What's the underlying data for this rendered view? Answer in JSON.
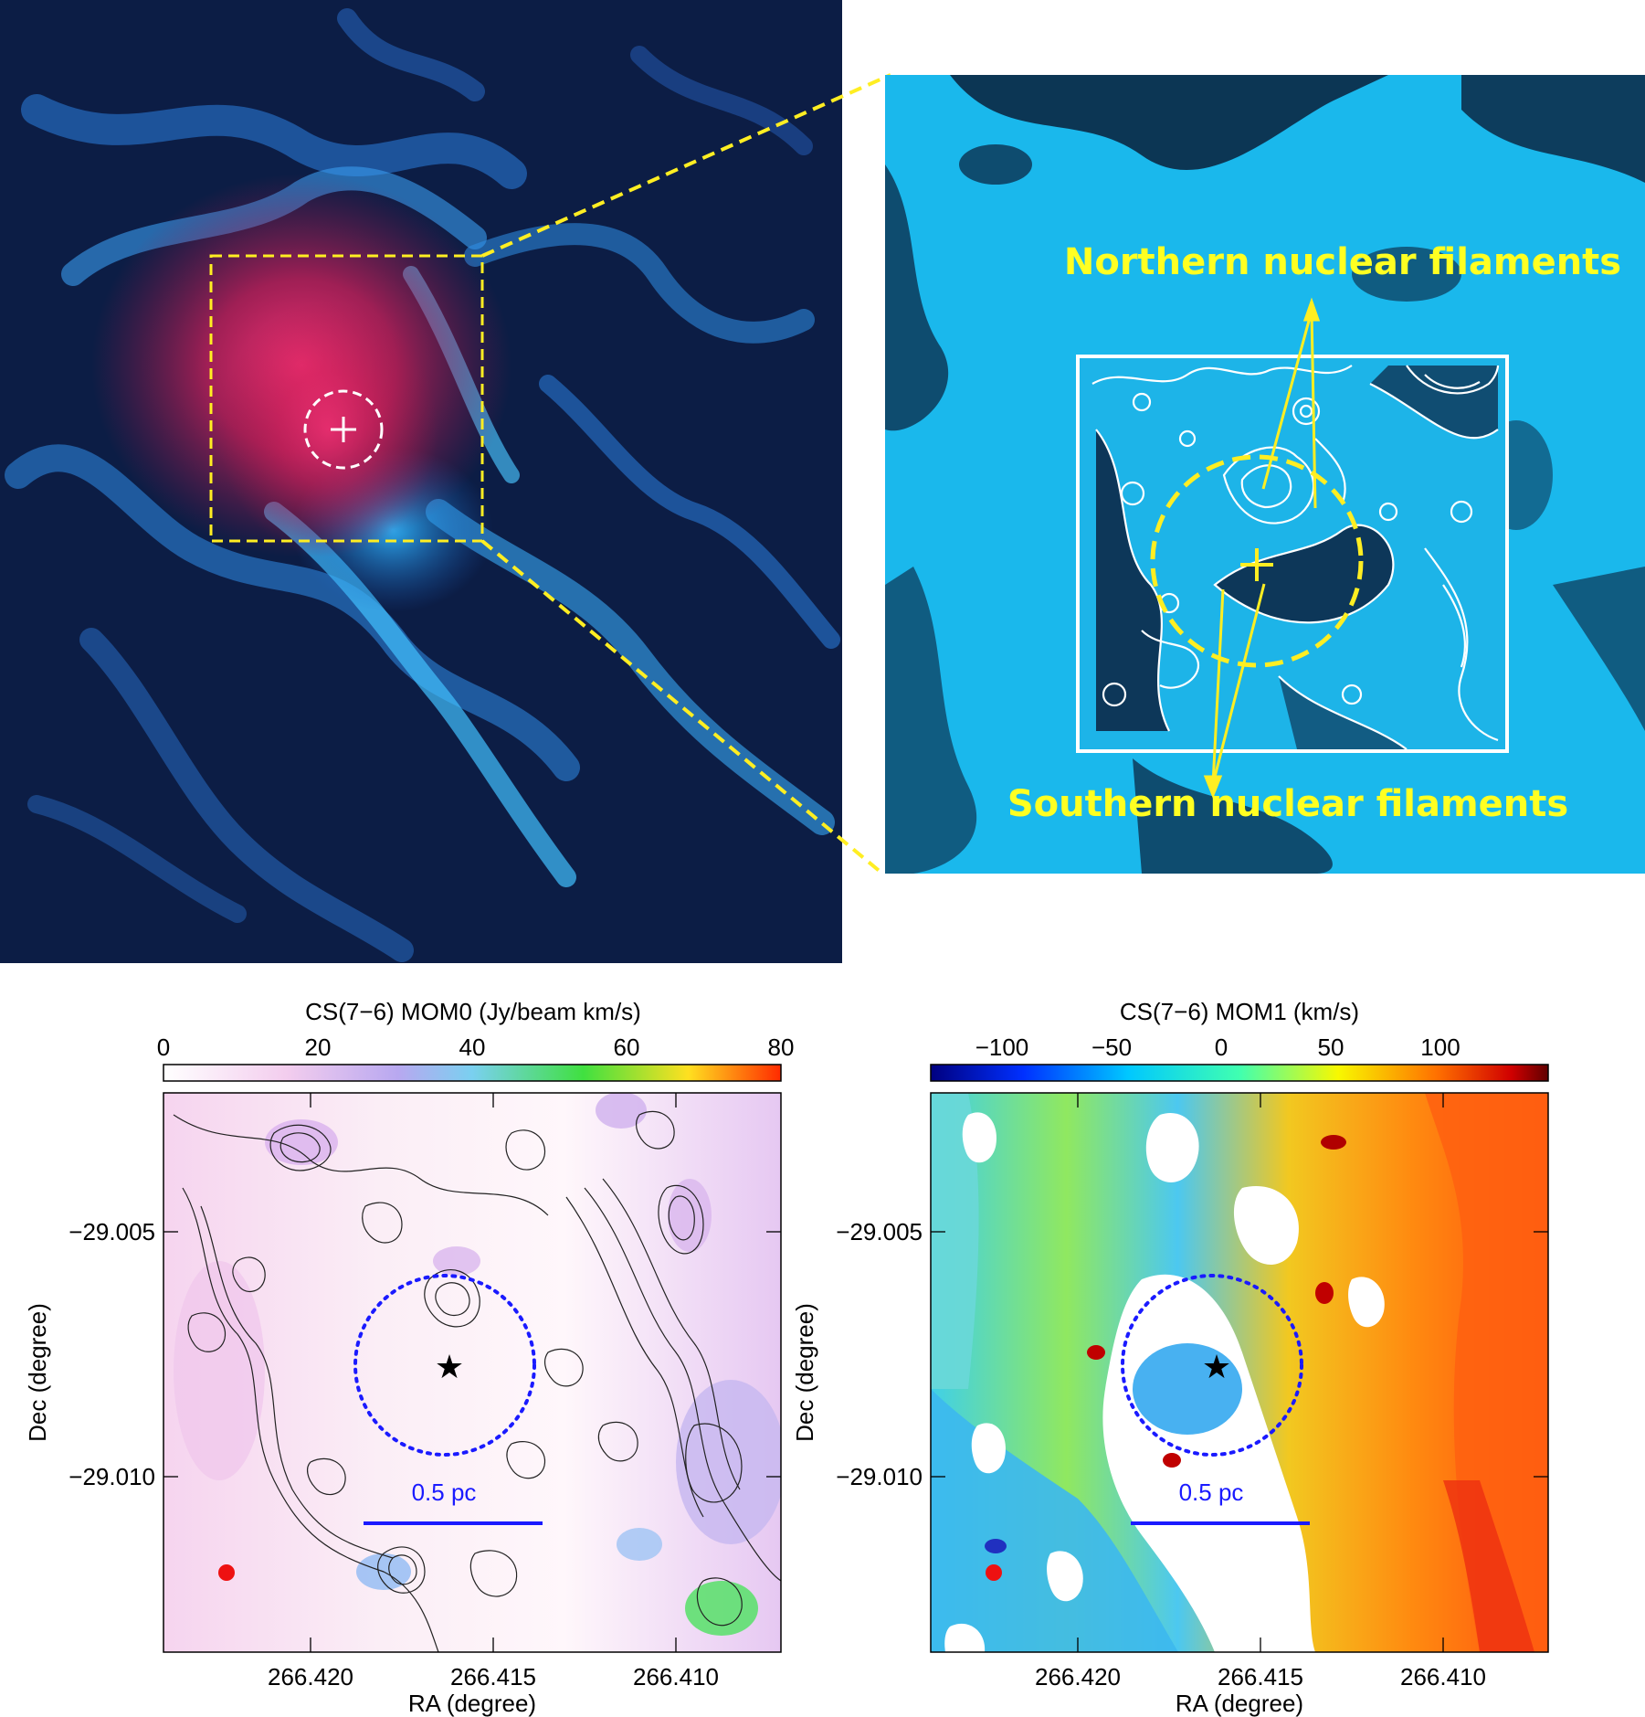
{
  "panels": {
    "top_right": {
      "label_north": "Northern nuclear filaments",
      "label_south": "Southern nuclear filaments"
    },
    "bottom_left": {
      "colorbar_title": "CS(7−6) MOM0 (Jy/beam km/s)",
      "colorbar_ticks": [
        "0",
        "20",
        "40",
        "60",
        "80"
      ],
      "scalebar_label": "0.5 pc",
      "xlabel": "RA (degree)",
      "ylabel": "Dec (degree)",
      "xticks": [
        "266.420",
        "266.415",
        "266.410"
      ],
      "yticks": [
        "−29.005",
        "−29.010"
      ]
    },
    "bottom_right": {
      "colorbar_title": "CS(7−6) MOM1 (km/s)",
      "colorbar_ticks": [
        "−100",
        "−50",
        "0",
        "50",
        "100"
      ],
      "scalebar_label": "0.5 pc",
      "xlabel": "RA (degree)",
      "ylabel": "Dec (degree)",
      "xticks": [
        "266.420",
        "266.415",
        "266.410"
      ],
      "yticks": [
        "−29.005",
        "−29.010"
      ]
    }
  },
  "colors": {
    "annotation_yellow": "#ffff22",
    "scalebar_blue": "#1a1aff",
    "marker_red": "#ee1111"
  }
}
